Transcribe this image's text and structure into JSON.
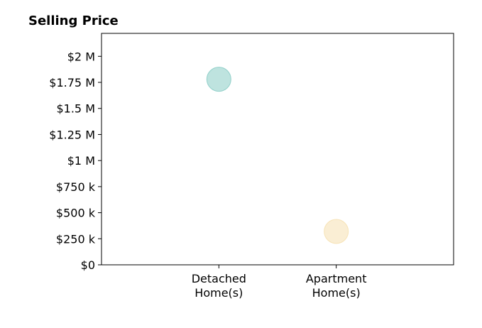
{
  "chart_data": {
    "type": "scatter",
    "title": "Selling Price",
    "xlabel": "",
    "ylabel": "",
    "categories": [
      [
        "Detached",
        "Home(s)"
      ],
      [
        "Apartment",
        "Home(s)"
      ]
    ],
    "points": [
      {
        "category": 0,
        "y": 1780000,
        "color": "#7ec8c0"
      },
      {
        "category": 1,
        "y": 320000,
        "color": "#f5deaa"
      }
    ],
    "yticks": [
      {
        "value": 0,
        "label": "$0"
      },
      {
        "value": 250000,
        "label": "$250 k"
      },
      {
        "value": 500000,
        "label": "$500 k"
      },
      {
        "value": 750000,
        "label": "$750 k"
      },
      {
        "value": 1000000,
        "label": "$1 M"
      },
      {
        "value": 1250000,
        "label": "$1.25 M"
      },
      {
        "value": 1500000,
        "label": "$1.5 M"
      },
      {
        "value": 1750000,
        "label": "$1.75 M"
      },
      {
        "value": 2000000,
        "label": "$2 M"
      }
    ],
    "ylim": [
      0,
      2220000
    ],
    "xlim": [
      -1,
      2
    ],
    "grid": false,
    "legend": "none"
  }
}
